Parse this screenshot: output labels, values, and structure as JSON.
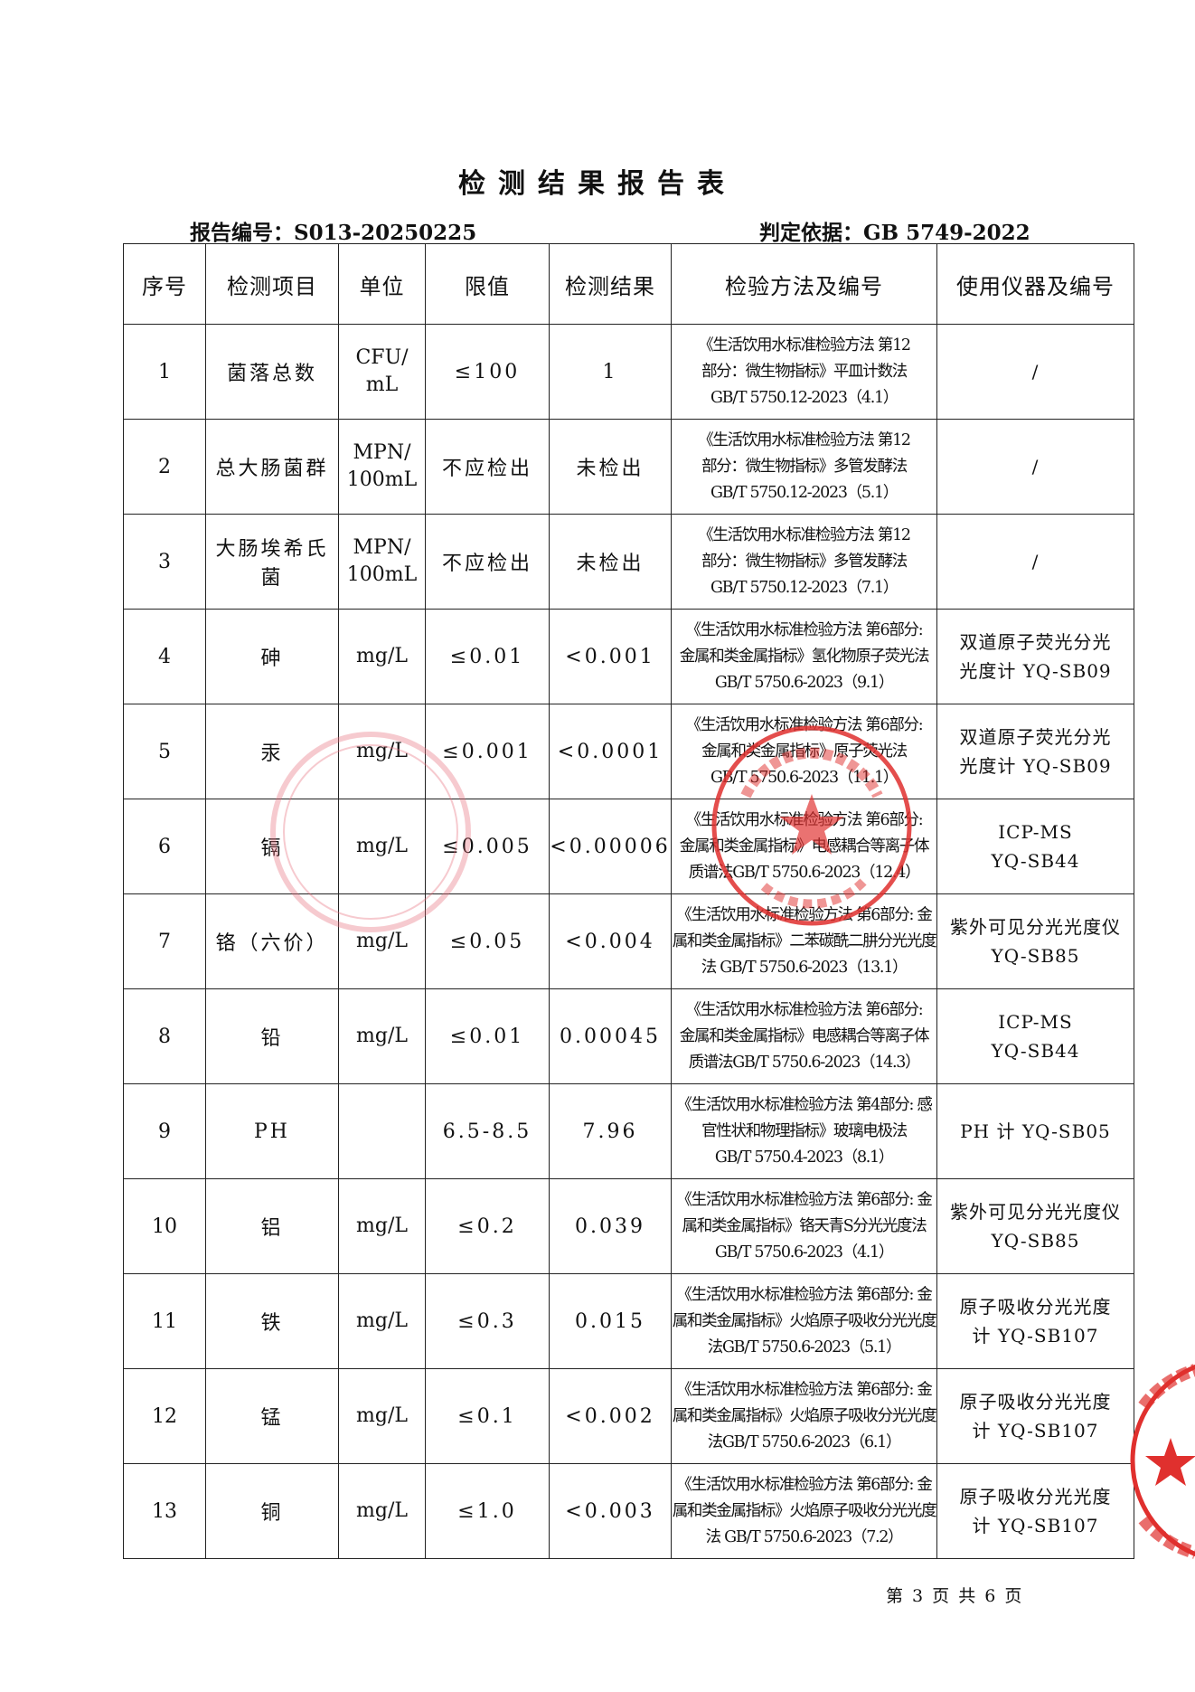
{
  "title": "检测结果报告表",
  "report_no_label": "报告编号：S013-20250225",
  "basis_label": "判定依据：GB 5749-2022",
  "table": {
    "headers": [
      "序号",
      "检测项目",
      "单位",
      "限值",
      "检测结果",
      "检验方法及编号",
      "使用仪器及编号"
    ],
    "rows": [
      {
        "no": "1",
        "item": "菌落总数",
        "unit": [
          "CFU/",
          "mL"
        ],
        "limit": "≤100",
        "result": "1",
        "method": [
          "《生活饮用水标准检验方法 第12",
          "部分：微生物指标》平皿计数法",
          "GB/T 5750.12-2023（4.1）"
        ],
        "instrument": [
          "/"
        ]
      },
      {
        "no": "2",
        "item": "总大肠菌群",
        "unit": [
          "MPN/",
          "100mL"
        ],
        "limit": "不应检出",
        "result": "未检出",
        "method": [
          "《生活饮用水标准检验方法 第12",
          "部分：微生物指标》多管发酵法",
          "GB/T 5750.12-2023（5.1）"
        ],
        "instrument": [
          "/"
        ]
      },
      {
        "no": "3",
        "item": "大肠埃希氏菌",
        "unit": [
          "MPN/",
          "100mL"
        ],
        "limit": "不应检出",
        "result": "未检出",
        "method": [
          "《生活饮用水标准检验方法 第12",
          "部分：微生物指标》多管发酵法",
          "GB/T 5750.12-2023（7.1）"
        ],
        "instrument": [
          "/"
        ]
      },
      {
        "no": "4",
        "item": "砷",
        "unit": [
          "mg/L"
        ],
        "limit": "≤0.01",
        "result": "<0.001",
        "method": [
          "《生活饮用水标准检验方法 第6部分:",
          "金属和类金属指标》氢化物原子荧光法",
          "GB/T 5750.6-2023（9.1）"
        ],
        "instrument": [
          "双道原子荧光分光",
          "光度计 YQ-SB09"
        ]
      },
      {
        "no": "5",
        "item": "汞",
        "unit": [
          "mg/L"
        ],
        "limit": "≤0.001",
        "result": "<0.0001",
        "method": [
          "《生活饮用水标准检验方法 第6部分:",
          "金属和类金属指标》原子荧光法",
          "GB/T 5750.6-2023（11.1）"
        ],
        "instrument": [
          "双道原子荧光分光",
          "光度计 YQ-SB09"
        ]
      },
      {
        "no": "6",
        "item": "镉",
        "unit": [
          "mg/L"
        ],
        "limit": "≤0.005",
        "result": "<0.00006",
        "method": [
          "《生活饮用水标准检验方法 第6部分:",
          "金属和类金属指标》电感耦合等离子体",
          "质谱法GB/T 5750.6-2023（12.4）"
        ],
        "instrument": [
          "ICP-MS",
          "YQ-SB44"
        ]
      },
      {
        "no": "7",
        "item": "铬（六价）",
        "unit": [
          "mg/L"
        ],
        "limit": "≤0.05",
        "result": "<0.004",
        "method": [
          "《生活饮用水标准检验方法 第6部分: 金",
          "属和类金属指标》二苯碳酰二肼分光光度",
          "法 GB/T 5750.6-2023（13.1）"
        ],
        "instrument": [
          "紫外可见分光光度仪",
          "YQ-SB85"
        ]
      },
      {
        "no": "8",
        "item": "铅",
        "unit": [
          "mg/L"
        ],
        "limit": "≤0.01",
        "result": "0.00045",
        "method": [
          "《生活饮用水标准检验方法 第6部分:",
          "金属和类金属指标》电感耦合等离子体",
          "质谱法GB/T 5750.6-2023（14.3）"
        ],
        "instrument": [
          "ICP-MS",
          "YQ-SB44"
        ]
      },
      {
        "no": "9",
        "item": "PH",
        "unit": [
          ""
        ],
        "limit": "6.5-8.5",
        "result": "7.96",
        "method": [
          "《生活饮用水标准检验方法 第4部分: 感",
          "官性状和物理指标》玻璃电极法",
          "GB/T 5750.4-2023（8.1）"
        ],
        "instrument": [
          "PH 计 YQ-SB05"
        ]
      },
      {
        "no": "10",
        "item": "铝",
        "unit": [
          "mg/L"
        ],
        "limit": "≤0.2",
        "result": "0.039",
        "method": [
          "《生活饮用水标准检验方法 第6部分: 金",
          "属和类金属指标》铬天青S分光光度法",
          "GB/T 5750.6-2023（4.1）"
        ],
        "instrument": [
          "紫外可见分光光度仪",
          "YQ-SB85"
        ]
      },
      {
        "no": "11",
        "item": "铁",
        "unit": [
          "mg/L"
        ],
        "limit": "≤0.3",
        "result": "0.015",
        "method": [
          "《生活饮用水标准检验方法 第6部分: 金",
          "属和类金属指标》火焰原子吸收分光光度",
          "法GB/T 5750.6-2023（5.1）"
        ],
        "instrument": [
          "原子吸收分光光度",
          "计 YQ-SB107"
        ]
      },
      {
        "no": "12",
        "item": "锰",
        "unit": [
          "mg/L"
        ],
        "limit": "≤0.1",
        "result": "<0.002",
        "method": [
          "《生活饮用水标准检验方法 第6部分: 金",
          "属和类金属指标》火焰原子吸收分光光度",
          "法GB/T 5750.6-2023（6.1）"
        ],
        "instrument": [
          "原子吸收分光光度",
          "计 YQ-SB107"
        ]
      },
      {
        "no": "13",
        "item": "铜",
        "unit": [
          "mg/L"
        ],
        "limit": "≤1.0",
        "result": "<0.003",
        "method": [
          "《生活饮用水标准检验方法 第6部分: 金",
          "属和类金属指标》火焰原子吸收分光光度",
          "法 GB/T 5750.6-2023（7.2）"
        ],
        "instrument": [
          "原子吸收分光光度",
          "计 YQ-SB107"
        ]
      }
    ]
  },
  "footer": "第 3 页 共 6 页",
  "colors": {
    "seal": "#e0302e",
    "faint_seal": "#f2b6bb",
    "ink": "#111111"
  },
  "seals": [
    "official-seal-red",
    "faint-seal-left",
    "partial-seal-right-edge"
  ]
}
